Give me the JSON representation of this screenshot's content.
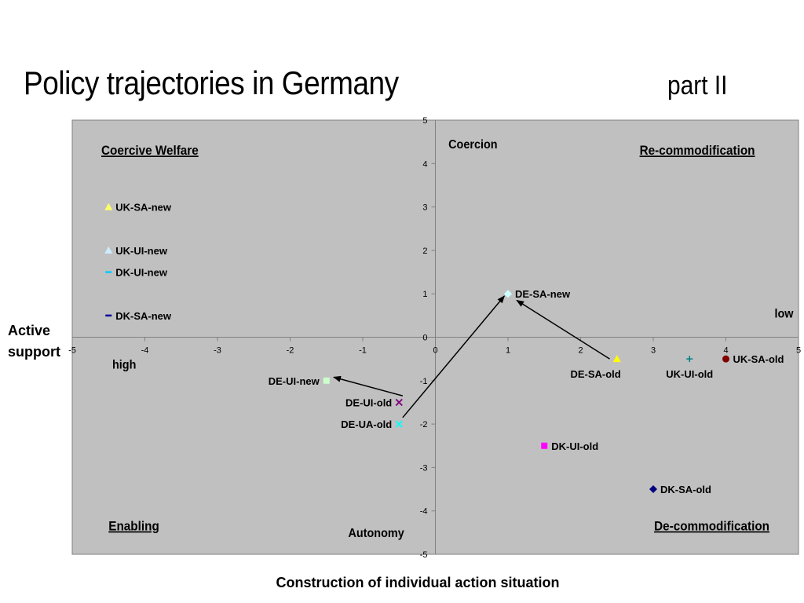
{
  "slide": {
    "title": "Policy trajectories in Germany",
    "subtitle": "part II",
    "y_side_label_line1": "Active",
    "y_side_label_line2": "support",
    "x_caption": "Construction of individual action situation"
  },
  "colors": {
    "plot_background": "#c0c0c0",
    "axis": "#808080",
    "arrow": "#000000"
  },
  "chart_data": {
    "type": "scatter",
    "title": "",
    "xlabel": "Construction of individual action situation",
    "ylabel": "Active support",
    "xlim": [
      -5,
      5
    ],
    "ylim": [
      -5,
      5
    ],
    "x_ticks": [
      -5,
      -4,
      -3,
      -2,
      -1,
      0,
      1,
      2,
      3,
      4,
      5
    ],
    "y_ticks": [
      -5,
      -4,
      -3,
      -2,
      -1,
      0,
      1,
      2,
      3,
      4,
      5
    ],
    "grid": false,
    "quadrant_titles": [
      {
        "text": "Coercive Welfare",
        "x": -4.6,
        "y": 4.2,
        "anchor": "start",
        "underline": true
      },
      {
        "text": "Re-commodification",
        "x": 4.4,
        "y": 4.2,
        "anchor": "end",
        "underline": true
      },
      {
        "text": "Enabling",
        "x": -4.5,
        "y": -4.45,
        "anchor": "start",
        "underline": true
      },
      {
        "text": "De-commodification",
        "x": 4.6,
        "y": -4.45,
        "anchor": "end",
        "underline": true
      }
    ],
    "annotations": [
      {
        "text": "Coercion",
        "x": 0.18,
        "y": 4.35,
        "anchor": "start",
        "size": 16
      },
      {
        "text": "Autonomy",
        "x": -0.43,
        "y": -4.6,
        "anchor": "end",
        "size": 16
      },
      {
        "text": "low",
        "x": 4.93,
        "y": 0.45,
        "anchor": "end",
        "size": 16
      },
      {
        "text": "high",
        "x": -4.12,
        "y": -0.72,
        "anchor": "end",
        "size": 16
      }
    ],
    "series": [
      {
        "name": "UK-SA-new",
        "x": -4.5,
        "y": 3,
        "marker": "triangle",
        "color": "#ffff66",
        "label_side": "right"
      },
      {
        "name": "UK-UI-new",
        "x": -4.5,
        "y": 2,
        "marker": "triangle",
        "color": "#ccecff",
        "label_side": "right"
      },
      {
        "name": "DK-UI-new",
        "x": -4.5,
        "y": 1.5,
        "marker": "dash",
        "color": "#00ccff",
        "label_side": "right"
      },
      {
        "name": "DK-SA-new",
        "x": -4.5,
        "y": 0.5,
        "marker": "dash",
        "color": "#000099",
        "label_side": "right"
      },
      {
        "name": "DE-SA-new",
        "x": 1,
        "y": 1,
        "marker": "diamond",
        "color": "#ccffff",
        "label_side": "right"
      },
      {
        "name": "DE-UI-new",
        "x": -1.5,
        "y": -1,
        "marker": "square",
        "color": "#ccffcc",
        "label_side": "left"
      },
      {
        "name": "DE-UI-old",
        "x": -0.5,
        "y": -1.5,
        "marker": "x",
        "color": "#800080",
        "label_side": "left"
      },
      {
        "name": "DE-UA-old",
        "x": -0.5,
        "y": -2,
        "marker": "x",
        "color": "#00ffff",
        "label_side": "left"
      },
      {
        "name": "DE-SA-old",
        "x": 2.5,
        "y": -0.5,
        "marker": "triangle",
        "color": "#ffff00",
        "label_side": "below-left"
      },
      {
        "name": "UK-UI-old",
        "x": 3.5,
        "y": -0.5,
        "marker": "plus",
        "color": "#008080",
        "label_side": "below"
      },
      {
        "name": "UK-SA-old",
        "x": 4,
        "y": -0.5,
        "marker": "circle",
        "color": "#800000",
        "label_side": "right"
      },
      {
        "name": "DK-UI-old",
        "x": 1.5,
        "y": -2.5,
        "marker": "square",
        "color": "#ff00ff",
        "label_side": "right"
      },
      {
        "name": "DK-SA-old",
        "x": 3,
        "y": -3.5,
        "marker": "diamond",
        "color": "#000080",
        "label_side": "right"
      }
    ],
    "arrows": [
      {
        "from": [
          -0.45,
          -1.35
        ],
        "to": [
          -1.4,
          -0.92
        ]
      },
      {
        "from": [
          -0.45,
          -1.85
        ],
        "to": [
          0.95,
          0.95
        ]
      },
      {
        "from": [
          2.4,
          -0.5
        ],
        "to": [
          1.12,
          0.85
        ]
      }
    ]
  }
}
